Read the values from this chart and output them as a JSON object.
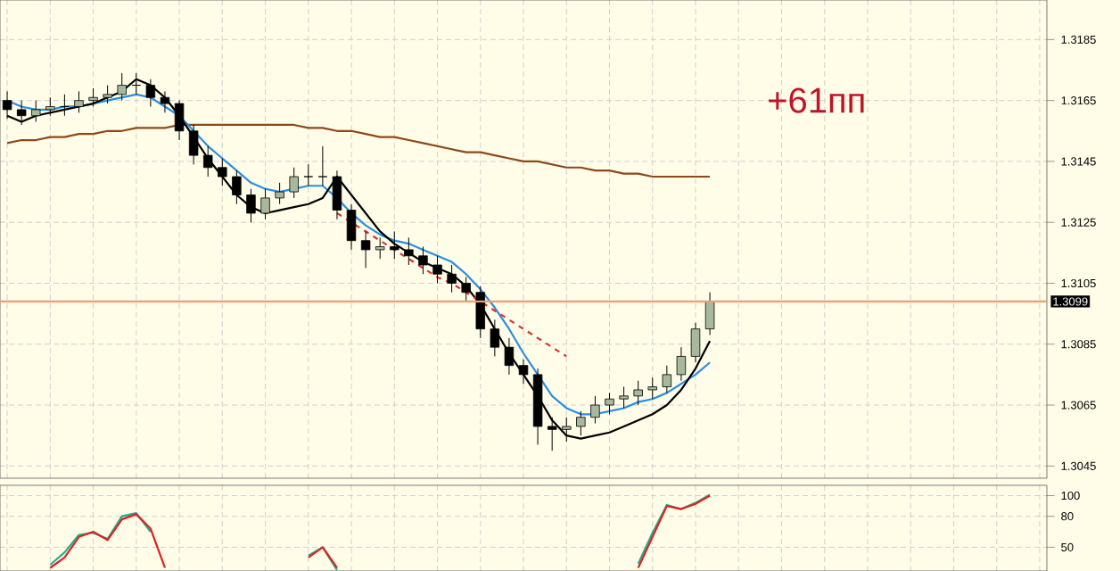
{
  "chart_data": [
    {
      "type": "candlestick",
      "categories": [
        null,
        null,
        null,
        null,
        null,
        null,
        null,
        null,
        null,
        null,
        null,
        null,
        null,
        null,
        null,
        null,
        null,
        null,
        null,
        null,
        null,
        null,
        null,
        null,
        null,
        null,
        null,
        null,
        null,
        null,
        null,
        null,
        null,
        null,
        null,
        null,
        null,
        null,
        null,
        null,
        null,
        null,
        null,
        null,
        null,
        null,
        null,
        null,
        null,
        null,
        null,
        null,
        null,
        null,
        null,
        null,
        null,
        null,
        null,
        null,
        null,
        null,
        null,
        null,
        null,
        null,
        null,
        null,
        null,
        null,
        null,
        null,
        null
      ],
      "ohlc": [
        [
          1.3165,
          1.3168,
          1.3159,
          1.3162
        ],
        [
          1.3162,
          1.3165,
          1.3157,
          1.316
        ],
        [
          1.316,
          1.3165,
          1.3158,
          1.3162
        ],
        [
          1.3162,
          1.3166,
          1.316,
          1.3163
        ],
        [
          1.3163,
          1.3167,
          1.316,
          1.3163
        ],
        [
          1.3163,
          1.3168,
          1.3161,
          1.3165
        ],
        [
          1.3165,
          1.3169,
          1.3163,
          1.3166
        ],
        [
          1.3166,
          1.317,
          1.3164,
          1.3167
        ],
        [
          1.3167,
          1.3174,
          1.3165,
          1.317
        ],
        [
          1.317,
          1.3174,
          1.3167,
          1.317
        ],
        [
          1.317,
          1.3172,
          1.3163,
          1.3166
        ],
        [
          1.3166,
          1.3168,
          1.3161,
          1.3164
        ],
        [
          1.3164,
          1.3165,
          1.3152,
          1.3155
        ],
        [
          1.3155,
          1.3157,
          1.3144,
          1.3147
        ],
        [
          1.3147,
          1.315,
          1.314,
          1.3143
        ],
        [
          1.3143,
          1.3146,
          1.3137,
          1.314
        ],
        [
          1.314,
          1.3142,
          1.3131,
          1.3134
        ],
        [
          1.3134,
          1.3136,
          1.3125,
          1.3128
        ],
        [
          1.3128,
          1.3136,
          1.3126,
          1.3133
        ],
        [
          1.3133,
          1.3138,
          1.3131,
          1.3135
        ],
        [
          1.3135,
          1.3143,
          1.3133,
          1.314
        ],
        [
          1.314,
          1.3144,
          1.3137,
          1.314
        ],
        [
          1.314,
          1.315,
          1.3137,
          1.314
        ],
        [
          1.314,
          1.3142,
          1.3126,
          1.3129
        ],
        [
          1.3129,
          1.3131,
          1.3116,
          1.3119
        ],
        [
          1.3119,
          1.3122,
          1.311,
          1.3116
        ],
        [
          1.3116,
          1.312,
          1.3113,
          1.3117
        ],
        [
          1.3117,
          1.3122,
          1.3113,
          1.3116
        ],
        [
          1.3116,
          1.312,
          1.3111,
          1.3114
        ],
        [
          1.3114,
          1.3117,
          1.3108,
          1.3111
        ],
        [
          1.3111,
          1.3114,
          1.3105,
          1.3108
        ],
        [
          1.3108,
          1.3111,
          1.3102,
          1.3105
        ],
        [
          1.3105,
          1.3107,
          1.3099,
          1.3102
        ],
        [
          1.3102,
          1.3104,
          1.3087,
          1.309
        ],
        [
          1.309,
          1.3093,
          1.3081,
          1.3084
        ],
        [
          1.3084,
          1.3087,
          1.3075,
          1.3078
        ],
        [
          1.3078,
          1.308,
          1.3072,
          1.3075
        ],
        [
          1.3075,
          1.3077,
          1.3052,
          1.3058
        ],
        [
          1.3058,
          1.3061,
          1.305,
          1.3057
        ],
        [
          1.3057,
          1.3061,
          1.3053,
          1.3058
        ],
        [
          1.3058,
          1.3063,
          1.3055,
          1.3061
        ],
        [
          1.3061,
          1.3068,
          1.3059,
          1.3065
        ],
        [
          1.3065,
          1.3069,
          1.3062,
          1.3067
        ],
        [
          1.3067,
          1.3071,
          1.3064,
          1.3068
        ],
        [
          1.3068,
          1.3073,
          1.3065,
          1.307
        ],
        [
          1.307,
          1.3074,
          1.3067,
          1.3071
        ],
        [
          1.3071,
          1.3078,
          1.3069,
          1.3075
        ],
        [
          1.3075,
          1.3084,
          1.3073,
          1.3081
        ],
        [
          1.3081,
          1.3092,
          1.3079,
          1.309
        ],
        [
          1.309,
          1.3102,
          1.3088,
          1.3099
        ],
        null,
        null,
        null,
        null,
        null,
        null,
        null,
        null,
        null,
        null,
        null,
        null,
        null,
        null,
        null,
        null,
        null,
        null,
        null,
        null,
        null,
        null,
        null
      ],
      "series": [
        {
          "type": "line",
          "color": "#8c4a1c",
          "values": [
            1.3151,
            1.3152,
            1.3152,
            1.3153,
            1.3153,
            1.3154,
            1.3154,
            1.3155,
            1.3155,
            1.3156,
            1.3156,
            1.3156,
            1.3157,
            1.3157,
            1.3157,
            1.3157,
            1.3157,
            1.3157,
            1.3157,
            1.3157,
            1.3157,
            1.3156,
            1.3156,
            1.3155,
            1.3155,
            1.3154,
            1.3153,
            1.3153,
            1.3152,
            1.3151,
            1.315,
            1.3149,
            1.3148,
            1.3148,
            1.3147,
            1.3146,
            1.3145,
            1.3145,
            1.3144,
            1.3143,
            1.3143,
            1.3142,
            1.3142,
            1.3141,
            1.3141,
            1.314,
            1.314,
            1.314,
            1.314,
            1.314,
            null,
            null,
            null,
            null,
            null,
            null,
            null,
            null,
            null,
            null,
            null,
            null,
            null,
            null,
            null,
            null,
            null,
            null,
            null,
            null,
            null,
            null,
            null
          ]
        },
        {
          "type": "line",
          "color": "#2a8fe0",
          "values": [
            1.3165,
            1.3163,
            1.3162,
            1.3162,
            1.3163,
            1.3163,
            1.3164,
            1.3165,
            1.3166,
            1.3167,
            1.3166,
            1.3163,
            1.316,
            1.3155,
            1.315,
            1.3146,
            1.3142,
            1.3138,
            1.3136,
            1.3135,
            1.3136,
            1.3137,
            1.3137,
            1.3133,
            1.3128,
            1.3124,
            1.3121,
            1.3119,
            1.3118,
            1.3116,
            1.3114,
            1.3112,
            1.3108,
            1.3103,
            1.3097,
            1.309,
            1.3082,
            1.3075,
            1.3068,
            1.3064,
            1.3062,
            1.3062,
            1.3063,
            1.3064,
            1.3066,
            1.3067,
            1.3069,
            1.3072,
            1.3075,
            1.3079,
            null,
            null,
            null,
            null,
            null,
            null,
            null,
            null,
            null,
            null,
            null,
            null,
            null,
            null,
            null,
            null,
            null,
            null,
            null,
            null,
            null,
            null,
            null
          ]
        },
        {
          "type": "line",
          "color": "#000000",
          "values": [
            1.316,
            1.3158,
            1.316,
            1.3161,
            1.3162,
            1.3163,
            1.3164,
            1.3166,
            1.3168,
            1.3172,
            1.317,
            1.3166,
            1.316,
            1.3153,
            1.3146,
            1.314,
            1.3134,
            1.313,
            1.3128,
            1.3129,
            1.313,
            1.3131,
            1.3133,
            1.314,
            1.3134,
            1.3128,
            1.3122,
            1.3118,
            1.3115,
            1.3112,
            1.311,
            1.3108,
            1.3104,
            1.3098,
            1.309,
            1.3082,
            1.3075,
            1.3068,
            1.306,
            1.3055,
            1.3054,
            1.3055,
            1.3056,
            1.3058,
            1.306,
            1.3062,
            1.3065,
            1.307,
            1.3077,
            1.3086,
            null,
            null,
            null,
            null,
            null,
            null,
            null,
            null,
            null,
            null,
            null,
            null,
            null,
            null,
            null,
            null,
            null,
            null,
            null,
            null,
            null,
            null,
            null
          ]
        },
        {
          "type": "line",
          "color": "#e03030",
          "line_style": "dashed",
          "values": [
            null,
            null,
            null,
            null,
            null,
            null,
            null,
            null,
            null,
            null,
            null,
            null,
            null,
            null,
            null,
            null,
            null,
            null,
            null,
            null,
            null,
            null,
            null,
            1.3128,
            1.3125,
            1.3122,
            1.3119,
            1.3116,
            1.3113,
            1.311,
            1.3107,
            1.3105,
            1.3102,
            1.3099,
            1.3096,
            1.3093,
            1.309,
            1.3087,
            1.3084,
            1.3081,
            null,
            null,
            null,
            null,
            null,
            null,
            null,
            null,
            null,
            null,
            null,
            null,
            null,
            null,
            null,
            null,
            null,
            null,
            null,
            null,
            null,
            null,
            null,
            null,
            null,
            null,
            null,
            null,
            null,
            null,
            null,
            null,
            null
          ]
        }
      ],
      "ylim": [
        1.3041,
        1.3198
      ],
      "yticks": [
        1.3045,
        1.3065,
        1.3085,
        1.3105,
        1.3125,
        1.3145,
        1.3165,
        1.3185
      ],
      "ref_lines": [
        {
          "axis": "y",
          "value": 1.3099,
          "label": "1.3099",
          "color": "#e8a07c"
        }
      ],
      "annotations": [
        "+61пп"
      ],
      "grid": true,
      "tick_labels": "y"
    },
    {
      "type": "line",
      "categories": [
        null,
        null,
        null,
        null,
        null,
        null,
        null,
        null,
        null,
        null,
        null,
        null,
        null,
        null,
        null,
        null,
        null,
        null,
        null,
        null,
        null,
        null,
        null,
        null,
        null,
        null,
        null,
        null,
        null,
        null,
        null,
        null,
        null,
        null,
        null,
        null,
        null,
        null,
        null,
        null,
        null,
        null,
        null,
        null,
        null,
        null,
        null,
        null,
        null,
        null,
        null,
        null,
        null,
        null,
        null,
        null,
        null,
        null,
        null,
        null,
        null,
        null,
        null,
        null,
        null,
        null,
        null,
        null,
        null,
        null,
        null,
        null,
        null
      ],
      "series": [
        {
          "color": "#20b090",
          "values": [
            null,
            null,
            null,
            33,
            45,
            62,
            64,
            58,
            80,
            83,
            65,
            null,
            null,
            null,
            null,
            null,
            null,
            null,
            null,
            null,
            null,
            42,
            50,
            28,
            null,
            null,
            null,
            null,
            null,
            null,
            null,
            null,
            null,
            null,
            null,
            null,
            null,
            null,
            null,
            null,
            null,
            null,
            null,
            null,
            34,
            64,
            91,
            87,
            93,
            101,
            null,
            null,
            null,
            null,
            null,
            null,
            null,
            null,
            null,
            null,
            null,
            null,
            null,
            null,
            null,
            null,
            null,
            null,
            null,
            null,
            null,
            null,
            null
          ]
        },
        {
          "color": "#e02020",
          "values": [
            null,
            null,
            null,
            30,
            40,
            60,
            65,
            57,
            77,
            82,
            68,
            30,
            null,
            null,
            null,
            null,
            null,
            null,
            null,
            null,
            null,
            40,
            50,
            30,
            null,
            null,
            null,
            null,
            null,
            null,
            null,
            null,
            null,
            null,
            null,
            null,
            null,
            null,
            null,
            null,
            null,
            null,
            null,
            null,
            30,
            60,
            90,
            87,
            92,
            100,
            null,
            null,
            null,
            null,
            null,
            null,
            null,
            null,
            null,
            null,
            null,
            null,
            null,
            null,
            null,
            null,
            null,
            null,
            null,
            null,
            null,
            null,
            null
          ]
        }
      ],
      "ylim": [
        27,
        110
      ],
      "yticks": [
        100,
        80,
        50
      ],
      "grid": true,
      "tick_labels": "y"
    }
  ]
}
